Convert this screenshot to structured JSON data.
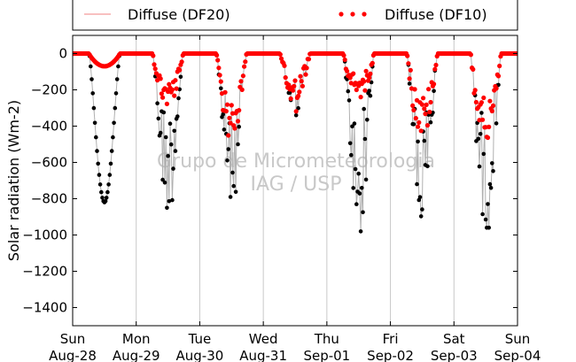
{
  "chart_data": {
    "type": "scatter",
    "ylabel": "Solar radiation (Wm-2)",
    "xlabel": "",
    "watermark": [
      "Grupo de Micrometeorologia",
      "IAG / USP"
    ],
    "ylim": [
      -1500,
      100
    ],
    "yticks": [
      0,
      -200,
      -400,
      -600,
      -800,
      -1000,
      -1200,
      -1400
    ],
    "xticks": [
      {
        "day": "Sun",
        "date": "Aug-28"
      },
      {
        "day": "Mon",
        "date": "Aug-29"
      },
      {
        "day": "Tue",
        "date": "Aug-30"
      },
      {
        "day": "Wed",
        "date": "Aug-31"
      },
      {
        "day": "Thu",
        "date": "Sep-01"
      },
      {
        "day": "Fri",
        "date": "Sep-02"
      },
      {
        "day": "Sat",
        "date": "Sep-03"
      },
      {
        "day": "Sun",
        "date": "Sep-04"
      }
    ],
    "grid": "x-only",
    "legend": {
      "placement": "top",
      "entries": [
        {
          "label": "Diffuse (DF20)",
          "style": "line",
          "color": "#f08080"
        },
        {
          "label": "Diffuse (DF10)",
          "style": "dots",
          "color": "#ff0000"
        }
      ]
    },
    "series_colors": {
      "black_points": "#000000",
      "grey_line": "#b0b0b0",
      "diffuse": "#ff0000"
    },
    "days": [
      {
        "day_index": 0,
        "black_peak": -820,
        "red_peak": -70,
        "noisy": false
      },
      {
        "day_index": 1,
        "black_peak": -850,
        "red_peak": -260,
        "noisy": true
      },
      {
        "day_index": 2,
        "black_peak": -790,
        "red_peak": -420,
        "noisy": true
      },
      {
        "day_index": 3,
        "black_peak": -340,
        "red_peak": -330,
        "noisy": true
      },
      {
        "day_index": 4,
        "black_peak": -980,
        "red_peak": -220,
        "noisy": true
      },
      {
        "day_index": 5,
        "black_peak": -930,
        "red_peak": -410,
        "noisy": true
      },
      {
        "day_index": 6,
        "black_peak": -960,
        "red_peak": -450,
        "noisy": true
      }
    ]
  }
}
